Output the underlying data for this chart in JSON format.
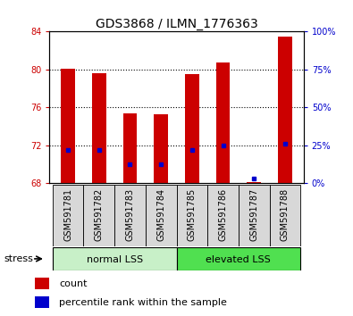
{
  "title": "GDS3868 / ILMN_1776363",
  "samples": [
    "GSM591781",
    "GSM591782",
    "GSM591783",
    "GSM591784",
    "GSM591785",
    "GSM591786",
    "GSM591787",
    "GSM591788"
  ],
  "red_tops": [
    80.1,
    79.6,
    75.4,
    75.3,
    79.5,
    80.7,
    68.12,
    83.5
  ],
  "blue_markers": [
    71.5,
    71.5,
    70.0,
    70.0,
    71.5,
    72.0,
    68.5,
    72.2
  ],
  "bar_bottom": 68.0,
  "ylim_left": [
    68,
    84
  ],
  "ylim_right": [
    0,
    100
  ],
  "yticks_left": [
    68,
    72,
    76,
    80,
    84
  ],
  "yticks_right": [
    0,
    25,
    50,
    75,
    100
  ],
  "ytick_labels_right": [
    "0%",
    "25%",
    "50%",
    "75%",
    "100%"
  ],
  "group1_label": "normal LSS",
  "group2_label": "elevated LSS",
  "group1_color": "#c8f0c8",
  "group2_color": "#50e050",
  "stress_label": "stress",
  "legend_red_label": "count",
  "legend_blue_label": "percentile rank within the sample",
  "red_color": "#cc0000",
  "blue_color": "#0000cc",
  "bar_width": 0.45,
  "title_fontsize": 10,
  "tick_fontsize": 7,
  "label_fontsize": 8,
  "legend_fontsize": 8,
  "background_color": "#ffffff",
  "plot_bg": "#ffffff",
  "left_tick_color": "#cc0000",
  "right_tick_color": "#0000cc",
  "xticklabel_bg": "#d8d8d8"
}
